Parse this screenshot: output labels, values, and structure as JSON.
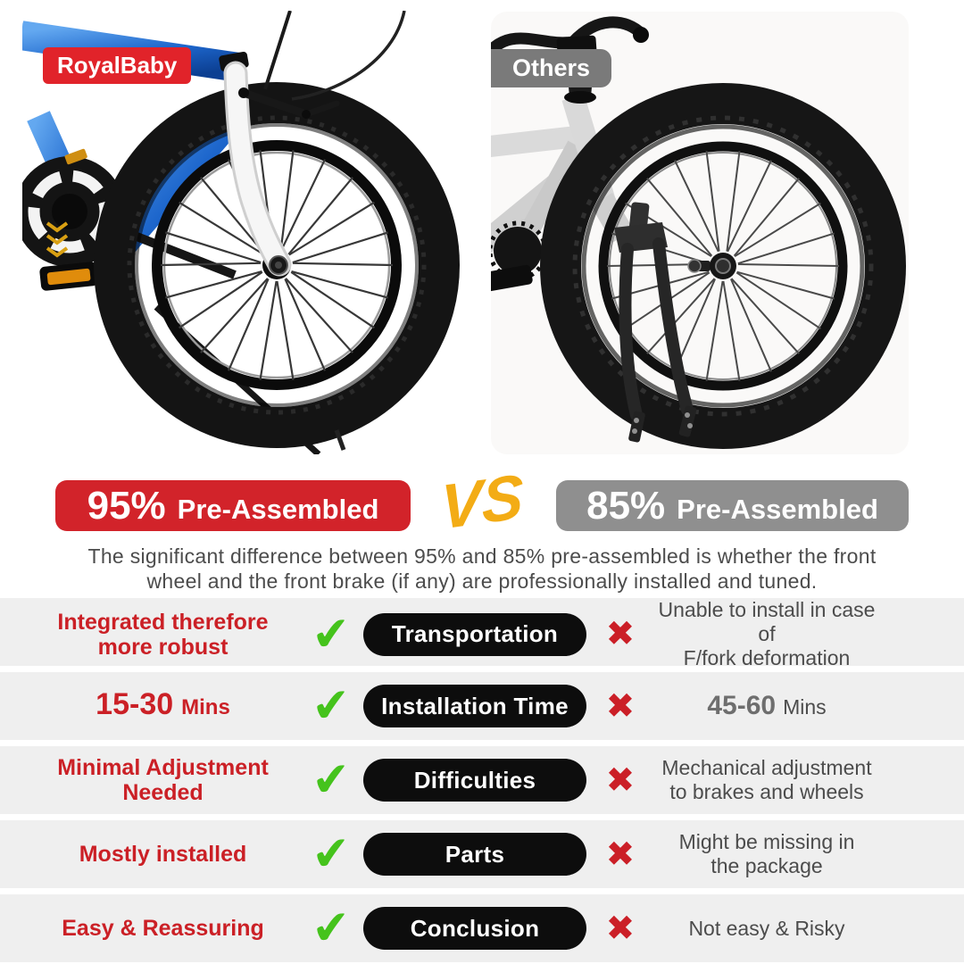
{
  "colors": {
    "brand_red": "#e1232a",
    "banner_red": "#d2232a",
    "banner_gray": "#8f8f8f",
    "badge_gray": "#7a7a7a",
    "vs_gold": "#f3ac15",
    "check_green": "#45c31c",
    "cross_red": "#cb1f27",
    "pros_red": "#cb2026",
    "text_gray": "#4c4c4c",
    "cons_strong_gray": "#6e6e6e",
    "pill_black": "#0d0d0d",
    "row_bg": "#efefef"
  },
  "photos": {
    "left_badge": "RoyalBaby",
    "right_badge": "Others"
  },
  "banners": {
    "left": {
      "value": "95%",
      "label": "Pre-Assembled"
    },
    "versus": "VS",
    "right": {
      "value": "85%",
      "label": "Pre-Assembled"
    }
  },
  "description": {
    "line1": "The significant difference between 95% and 85% pre-assembled is whether the front",
    "line2": "wheel and the front brake (if any) are professionally installed and tuned."
  },
  "icons": {
    "check": "✔",
    "cross": "✖"
  },
  "comparison": {
    "rows": [
      {
        "pros_line1": "Integrated therefore",
        "pros_line2": "more robust",
        "category": "Transportation",
        "cons_line1": "Unable to install in case of",
        "cons_line2": "F/fork deformation"
      },
      {
        "pros_strong": "15-30",
        "pros_suffix": "Mins",
        "category": "Installation Time",
        "cons_strong": "45-60",
        "cons_suffix": "Mins"
      },
      {
        "pros_line1": "Minimal Adjustment",
        "pros_line2": "Needed",
        "category": "Difficulties",
        "cons_line1": "Mechanical adjustment",
        "cons_line2": "to brakes and wheels"
      },
      {
        "pros_line1": "Mostly installed",
        "pros_line2": "",
        "category": "Parts",
        "cons_line1": "Might be missing in",
        "cons_line2": "the package"
      },
      {
        "pros_line1": "Easy & Reassuring",
        "pros_line2": "",
        "category": "Conclusion",
        "cons_line1": "Not easy & Risky",
        "cons_line2": ""
      }
    ]
  }
}
